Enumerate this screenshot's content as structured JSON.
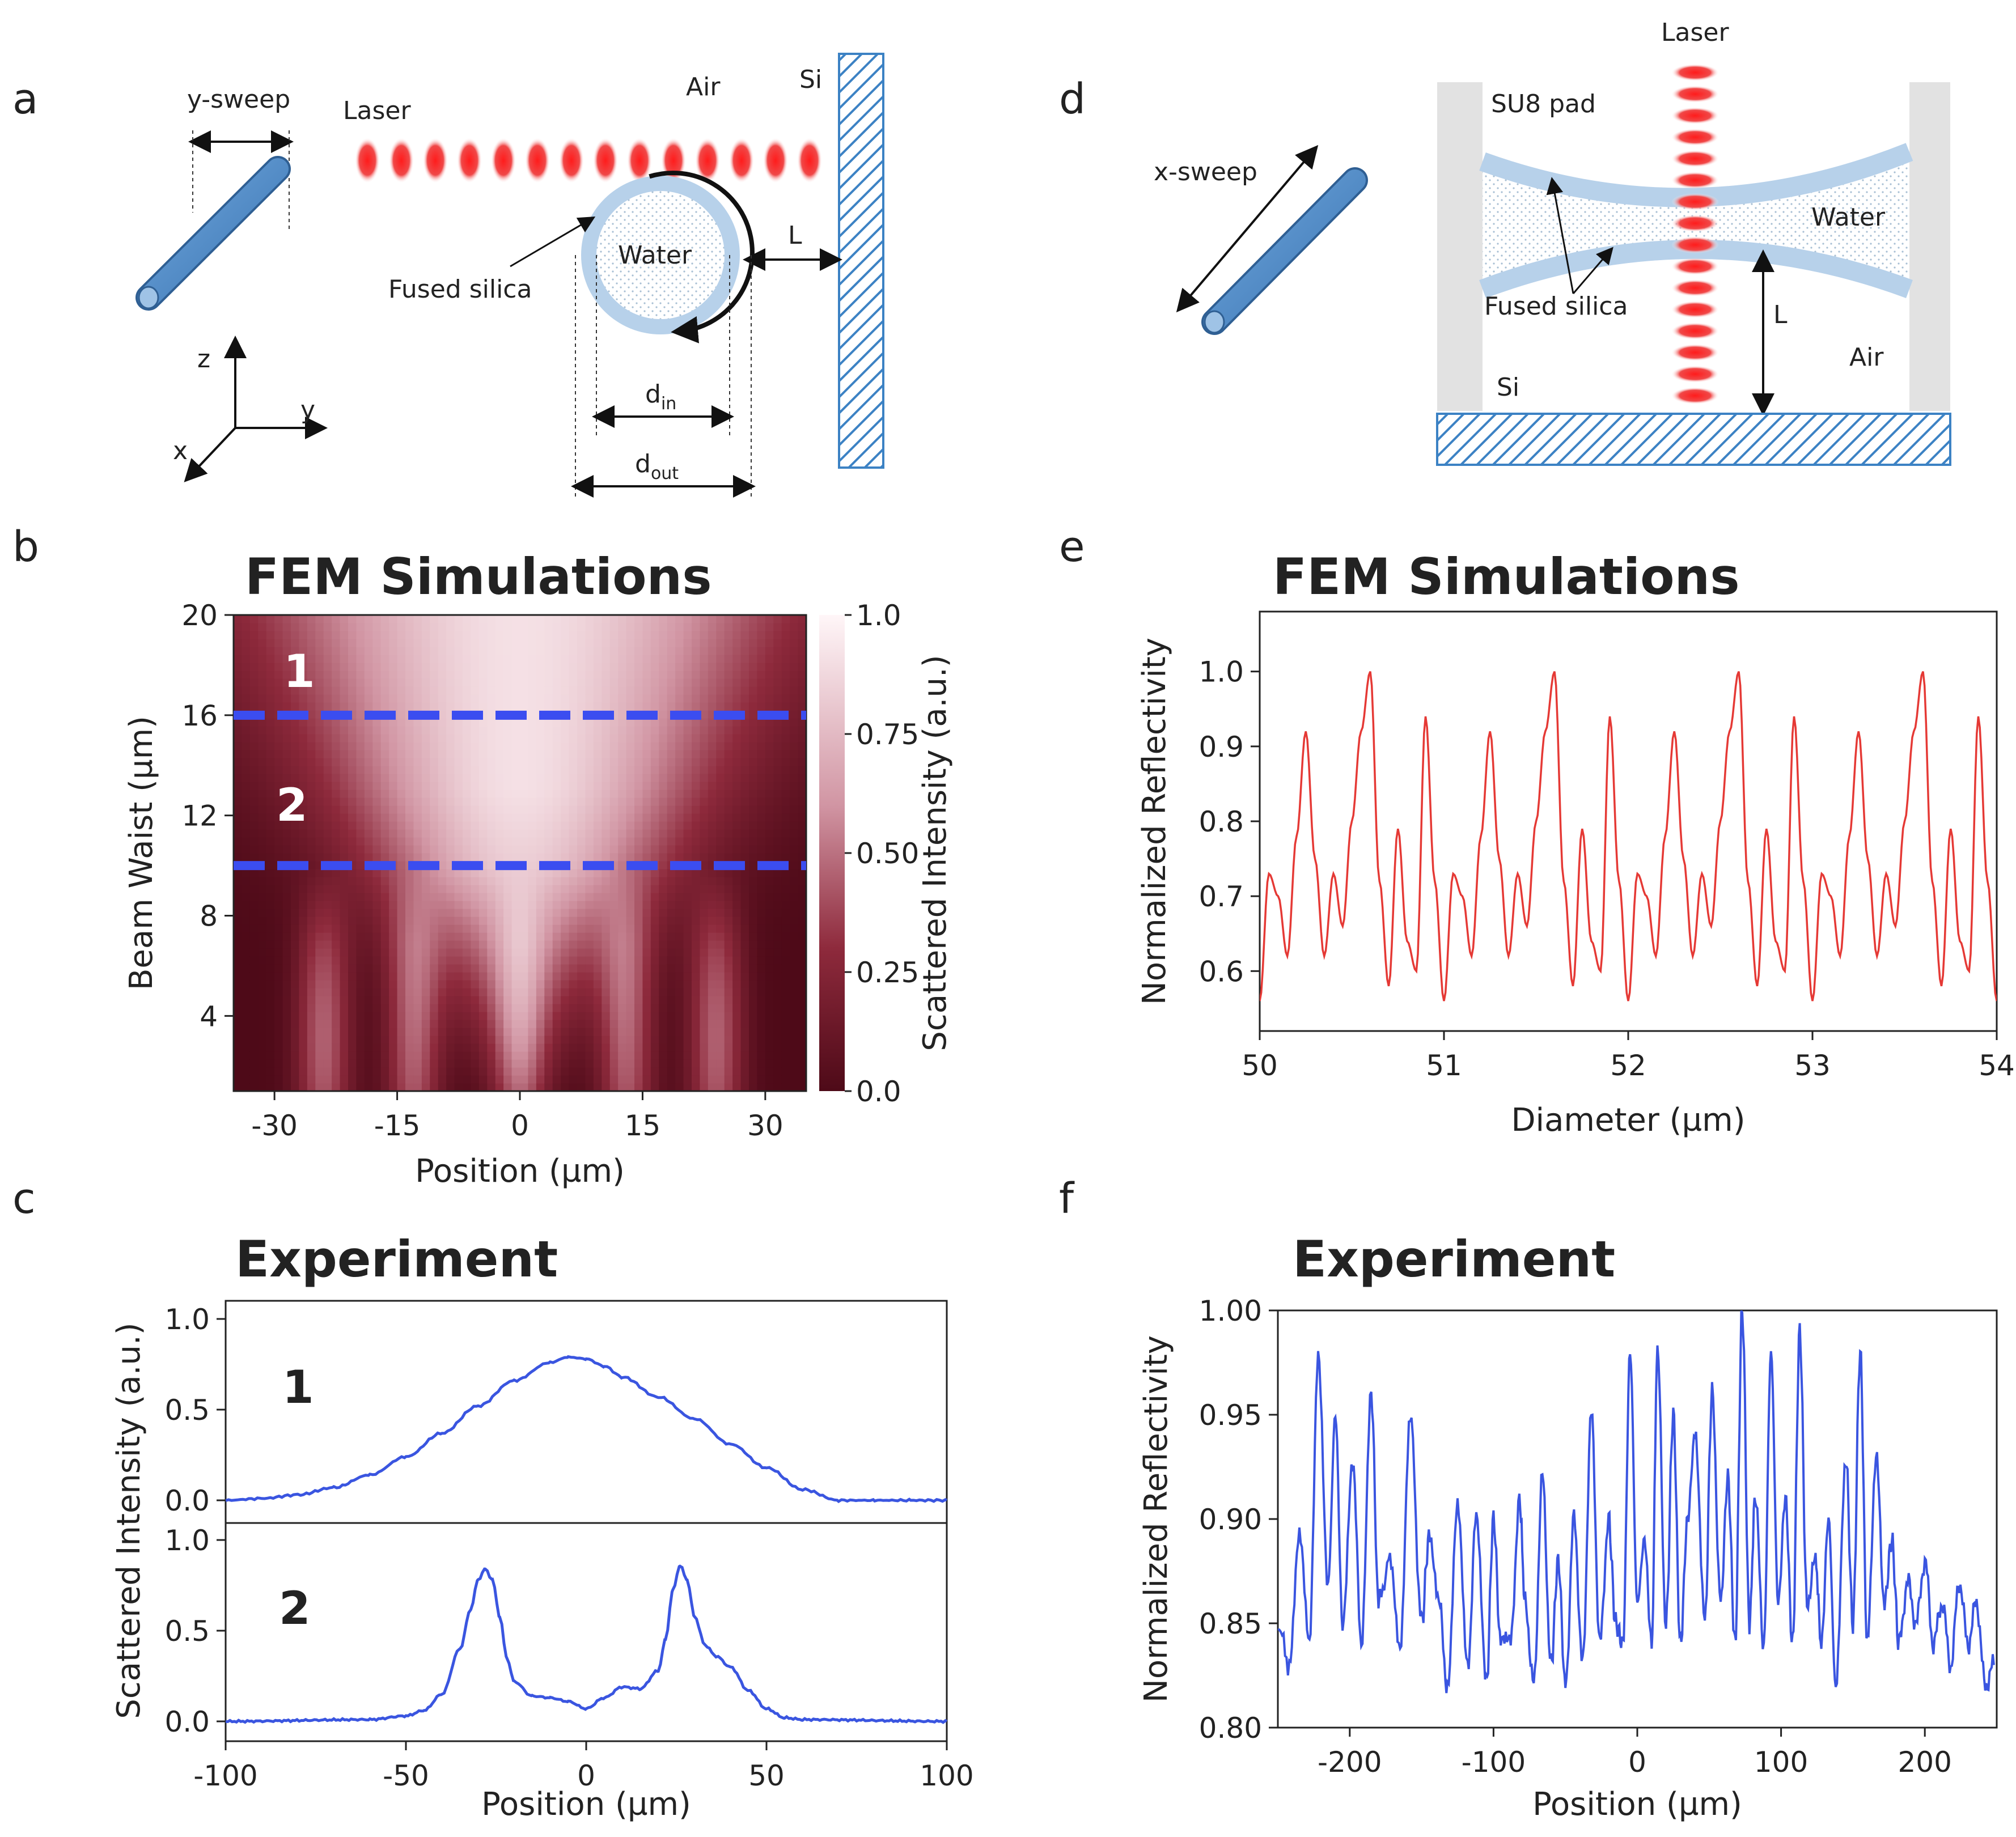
{
  "panel_labels": {
    "a": "a",
    "b": "b",
    "c": "c",
    "d": "d",
    "e": "e",
    "f": "f"
  },
  "colors": {
    "laser": "#ee2222",
    "fiber": "#4a86c5",
    "silica": "#b7d1ea",
    "si_hatch": "#3c82c4",
    "map_dark": "#5a0d1c",
    "map_light": "#fbeff2",
    "dash": "#3b4df0",
    "sim_line": "#e53935",
    "exp_line": "#3a55e0"
  },
  "diagram_a": {
    "sweep": "y-sweep",
    "laser": "Laser",
    "air": "Air",
    "si": "Si",
    "water": "Water",
    "silica": "Fused silica",
    "L": "L",
    "d_in": "d",
    "d_in_sub": "in",
    "d_out": "d",
    "d_out_sub": "out",
    "axis_z": "z",
    "axis_y": "y",
    "axis_x": "x"
  },
  "diagram_d": {
    "laser": "Laser",
    "su8": "SU8 pad",
    "sweep": "x-sweep",
    "water": "Water",
    "silica": "Fused silica",
    "L": "L",
    "air": "Air",
    "si": "Si"
  },
  "panel_b": {
    "title": "FEM Simulations",
    "region_labels": [
      "1",
      "2"
    ],
    "chart_data": {
      "type": "heatmap",
      "title": "FEM Simulations",
      "xlabel": "Position (µm)",
      "ylabel": "Beam Waist (µm)",
      "xlim": [
        -35,
        35
      ],
      "ylim": [
        1,
        20
      ],
      "xticks": [
        "-30",
        "-15",
        "0",
        "15",
        "30"
      ],
      "yticks": [
        "4",
        "8",
        "12",
        "16",
        "20"
      ],
      "colorbar": {
        "label": "Scattered Intensity (a.u.)",
        "range": [
          0,
          1.0
        ],
        "ticks": [
          "0.0",
          "0.25",
          "0.50",
          "0.75",
          "1.0"
        ]
      },
      "cut_lines_beam_waist": [
        16,
        10
      ]
    }
  },
  "panel_c": {
    "title": "Experiment",
    "ylabel": "Scattered Intensity (a.u.)",
    "xlabel": "Position (µm)",
    "sub_labels": [
      "1",
      "2"
    ],
    "xticks": [
      "-100",
      "-50",
      "0",
      "50",
      "100"
    ],
    "yticks": [
      "0.0",
      "0.5",
      "1.0"
    ],
    "chart_data": [
      {
        "type": "line",
        "name": "1",
        "xlim": [
          -100,
          100
        ],
        "ylim": [
          0,
          1.0
        ],
        "x": [
          -100,
          -90,
          -80,
          -70,
          -60,
          -50,
          -40,
          -30,
          -20,
          -10,
          -5,
          0,
          5,
          10,
          20,
          30,
          40,
          50,
          60,
          70,
          80,
          90,
          100
        ],
        "y": [
          0.0,
          0.01,
          0.03,
          0.07,
          0.14,
          0.24,
          0.37,
          0.52,
          0.66,
          0.76,
          0.79,
          0.78,
          0.74,
          0.68,
          0.57,
          0.45,
          0.31,
          0.18,
          0.06,
          0.0,
          0.0,
          0.0,
          0.0
        ]
      },
      {
        "type": "line",
        "name": "2",
        "xlim": [
          -100,
          100
        ],
        "ylim": [
          0,
          1.0
        ],
        "x": [
          -100,
          -60,
          -50,
          -45,
          -40,
          -35,
          -32,
          -30,
          -28,
          -26,
          -24,
          -22,
          -20,
          -15,
          -10,
          -5,
          0,
          5,
          10,
          15,
          20,
          22,
          24,
          26,
          28,
          30,
          33,
          36,
          40,
          45,
          50,
          55,
          60,
          100
        ],
        "y": [
          0.0,
          0.01,
          0.03,
          0.06,
          0.15,
          0.4,
          0.62,
          0.78,
          0.84,
          0.78,
          0.58,
          0.35,
          0.22,
          0.14,
          0.13,
          0.11,
          0.07,
          0.13,
          0.19,
          0.18,
          0.28,
          0.45,
          0.72,
          0.86,
          0.78,
          0.58,
          0.42,
          0.36,
          0.3,
          0.17,
          0.07,
          0.02,
          0.01,
          0.0
        ]
      }
    ]
  },
  "panel_e": {
    "title": "FEM Simulations",
    "chart_data": {
      "type": "line",
      "title": "FEM Simulations",
      "xlabel": "Diameter (µm)",
      "ylabel": "Normalized Reflectivity",
      "xlim": [
        50,
        54
      ],
      "ylim": [
        0.52,
        1.08
      ],
      "xticks": [
        "50",
        "51",
        "52",
        "53",
        "54"
      ],
      "yticks": [
        "0.6",
        "0.7",
        "0.8",
        "0.9",
        "1.0"
      ],
      "period": 1.0,
      "x": [
        50.0,
        50.05,
        50.1,
        50.15,
        50.2,
        50.25,
        50.3,
        50.35,
        50.4,
        50.45,
        50.5,
        50.55,
        50.6,
        50.65,
        50.7,
        50.75,
        50.8,
        50.85,
        50.9,
        50.95,
        51.0
      ],
      "y": [
        0.56,
        0.73,
        0.7,
        0.62,
        0.78,
        0.92,
        0.75,
        0.62,
        0.73,
        0.66,
        0.8,
        0.92,
        1.0,
        0.72,
        0.58,
        0.79,
        0.64,
        0.6,
        0.94,
        0.72,
        0.56
      ]
    }
  },
  "panel_f": {
    "title": "Experiment",
    "chart_data": {
      "type": "line",
      "title": "Experiment",
      "xlabel": "Position (µm)",
      "ylabel": "Normalized Reflectivity",
      "xlim": [
        -250,
        250
      ],
      "ylim": [
        0.8,
        1.0
      ],
      "xticks": [
        "-200",
        "-100",
        "0",
        "100",
        "200"
      ],
      "yticks": [
        "0.80",
        "0.85",
        "0.90",
        "0.95",
        "1.00"
      ],
      "x": [
        -250,
        -242,
        -235,
        -228,
        -222,
        -215,
        -210,
        -205,
        -198,
        -192,
        -185,
        -180,
        -172,
        -165,
        -158,
        -150,
        -145,
        -138,
        -132,
        -125,
        -118,
        -112,
        -105,
        -100,
        -95,
        -88,
        -82,
        -78,
        -72,
        -66,
        -60,
        -55,
        -50,
        -44,
        -38,
        -32,
        -26,
        -20,
        -15,
        -10,
        -5,
        0,
        5,
        10,
        14,
        20,
        25,
        30,
        35,
        40,
        47,
        52,
        58,
        63,
        68,
        73,
        78,
        82,
        88,
        93,
        98,
        103,
        108,
        113,
        118,
        124,
        128,
        133,
        138,
        145,
        150,
        155,
        160,
        166,
        172,
        177,
        182,
        188,
        194,
        200,
        206,
        212,
        218,
        224,
        230,
        236,
        242,
        248
      ],
      "y": [
        0.85,
        0.83,
        0.89,
        0.84,
        0.98,
        0.87,
        0.95,
        0.85,
        0.93,
        0.84,
        0.96,
        0.86,
        0.88,
        0.84,
        0.95,
        0.85,
        0.89,
        0.86,
        0.82,
        0.91,
        0.83,
        0.9,
        0.82,
        0.9,
        0.84,
        0.84,
        0.91,
        0.86,
        0.82,
        0.92,
        0.83,
        0.88,
        0.82,
        0.9,
        0.83,
        0.95,
        0.84,
        0.9,
        0.85,
        0.84,
        0.98,
        0.86,
        0.89,
        0.84,
        0.98,
        0.85,
        0.95,
        0.84,
        0.9,
        0.94,
        0.85,
        0.96,
        0.86,
        0.92,
        0.84,
        1.0,
        0.85,
        0.91,
        0.84,
        0.98,
        0.86,
        0.91,
        0.84,
        0.99,
        0.86,
        0.88,
        0.84,
        0.9,
        0.82,
        0.93,
        0.85,
        0.98,
        0.84,
        0.93,
        0.86,
        0.89,
        0.84,
        0.87,
        0.85,
        0.88,
        0.84,
        0.86,
        0.83,
        0.87,
        0.84,
        0.86,
        0.82,
        0.83
      ]
    }
  }
}
